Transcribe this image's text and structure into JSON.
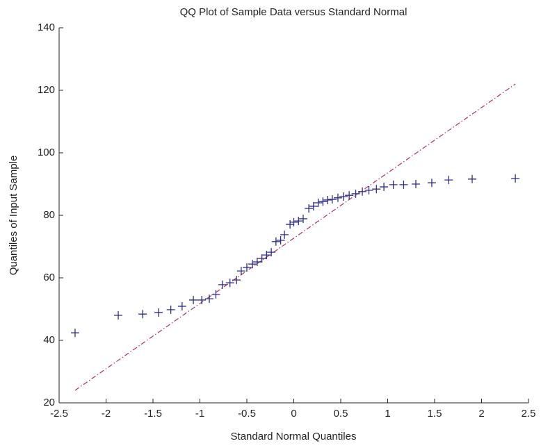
{
  "chart_data": {
    "type": "scatter",
    "title": "QQ Plot of Sample Data versus Standard Normal",
    "x_label": "Standard Normal Quantiles",
    "y_label": "Quantiles of Input Sample",
    "series": [
      {
        "color": "#2b2b8c",
        "x": [
          -2.33,
          -1.87,
          -1.61,
          -1.44,
          -1.31,
          -1.19,
          -1.07,
          -0.98,
          -0.9,
          -0.83,
          -0.76,
          -0.68,
          -0.61,
          -0.56,
          -0.5,
          -0.44,
          -0.39,
          -0.34,
          -0.29,
          -0.24,
          -0.19,
          -0.14,
          -0.1,
          -0.04,
          0,
          0.05,
          0.1,
          0.16,
          0.21,
          0.26,
          0.31,
          0.36,
          0.41,
          0.47,
          0.53,
          0.59,
          0.66,
          0.73,
          0.8,
          0.88,
          0.96,
          1.06,
          1.17,
          1.3,
          1.47,
          1.65,
          1.9,
          2.36
        ],
        "values": [
          42.4,
          48,
          48.4,
          48.9,
          49.8,
          50.9,
          52.9,
          52.9,
          53.3,
          54.7,
          57.8,
          58.4,
          59.3,
          62.2,
          63.3,
          64.4,
          65.1,
          66.2,
          67.3,
          68.2,
          71.6,
          72,
          73.8,
          77.1,
          77.8,
          78.2,
          78.9,
          82.2,
          82.9,
          84,
          84.4,
          84.9,
          85.1,
          85.6,
          86,
          86.4,
          86.9,
          87.6,
          88,
          88.4,
          89.1,
          89.8,
          89.8,
          90,
          90.4,
          91.3,
          91.6,
          91.8
        ]
      }
    ],
    "reference_line": {
      "color": "#b03050",
      "x": [
        -2.33,
        2.36
      ],
      "values": [
        24,
        122
      ]
    },
    "xlim": [
      -2.5,
      2.5
    ],
    "xticks": [
      -2.5,
      -2,
      -1.5,
      -1,
      -0.5,
      0,
      0.5,
      1,
      1.5,
      2,
      2.5
    ],
    "ylim": [
      20,
      140
    ],
    "yticks": [
      20,
      40,
      60,
      80,
      100,
      120,
      140
    ]
  }
}
